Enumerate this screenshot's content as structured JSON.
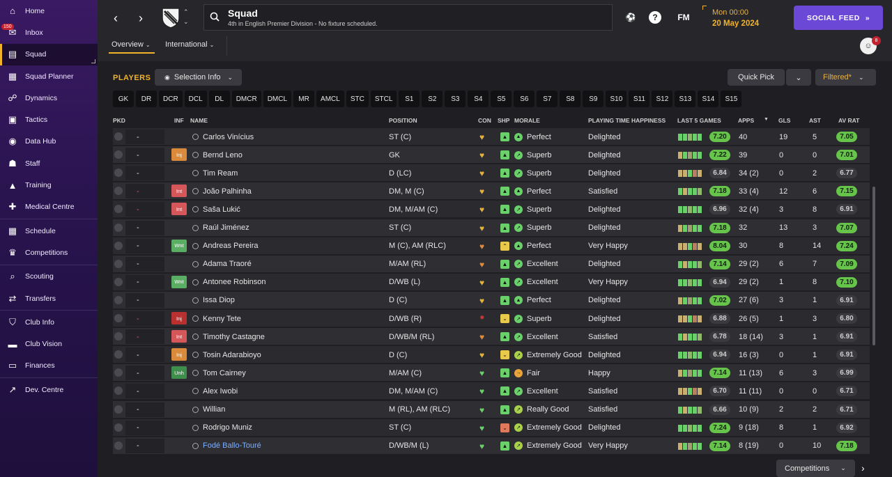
{
  "sidebar": {
    "inbox_badge": "150",
    "items": [
      {
        "label": "Home",
        "icon": "home-icon",
        "glyph": "⌂"
      },
      {
        "label": "Inbox",
        "icon": "inbox-icon",
        "glyph": "✉"
      },
      {
        "label": "Squad",
        "icon": "shirt-icon",
        "glyph": "▤"
      },
      {
        "label": "Squad Planner",
        "icon": "clipboard-icon",
        "glyph": "▦"
      },
      {
        "label": "Dynamics",
        "icon": "people-icon",
        "glyph": "☍"
      },
      {
        "label": "Tactics",
        "icon": "tactics-board-icon",
        "glyph": "▣"
      },
      {
        "label": "Data Hub",
        "icon": "data-hub-icon",
        "glyph": "◉"
      },
      {
        "label": "Staff",
        "icon": "staff-icon",
        "glyph": "☗"
      },
      {
        "label": "Training",
        "icon": "training-cone-icon",
        "glyph": "▲"
      },
      {
        "label": "Medical Centre",
        "icon": "medical-icon",
        "glyph": "✚"
      },
      {
        "label": "Schedule",
        "icon": "calendar-icon",
        "glyph": "▦"
      },
      {
        "label": "Competitions",
        "icon": "trophy-icon",
        "glyph": "♛"
      },
      {
        "label": "Scouting",
        "icon": "magnifier-icon",
        "glyph": "⌕"
      },
      {
        "label": "Transfers",
        "icon": "transfer-arrows-icon",
        "glyph": "⇄"
      },
      {
        "label": "Club Info",
        "icon": "shield-icon",
        "glyph": "⛉"
      },
      {
        "label": "Club Vision",
        "icon": "briefcase-icon",
        "glyph": "▬"
      },
      {
        "label": "Finances",
        "icon": "cash-icon",
        "glyph": "▭"
      },
      {
        "label": "Dev. Centre",
        "icon": "trend-icon",
        "glyph": "↗"
      }
    ]
  },
  "header": {
    "title": "Squad",
    "subtitle": "4th in English Premier Division - No fixture scheduled.",
    "time": "Mon 00:00",
    "date": "20 May 2024",
    "social_feed": "SOCIAL FEED",
    "fm_label": "FM",
    "help_label": "?",
    "notif_count": "8",
    "tabs": [
      "Overview",
      "International"
    ]
  },
  "toolbar": {
    "players_label": "PLAYERS",
    "selection_info": "Selection Info",
    "quick_pick": "Quick Pick",
    "filtered": "Filtered*",
    "positions": [
      "GK",
      "DR",
      "DCR",
      "DCL",
      "DL",
      "DMCR",
      "DMCL",
      "MR",
      "AMCL",
      "STC",
      "STCL",
      "S1",
      "S2",
      "S3",
      "S4",
      "S5",
      "S6",
      "S7",
      "S8",
      "S9",
      "S10",
      "S11",
      "S12",
      "S13",
      "S14",
      "S15"
    ]
  },
  "table": {
    "headers": {
      "pkd": "PKD",
      "inf": "INF",
      "name": "NAME",
      "position": "POSITION",
      "con": "CON",
      "shp": "SHP",
      "morale": "MORALE",
      "pth": "PLAYING TIME HAPPINESS",
      "last5": "LAST 5 GAMES",
      "apps": "APPS",
      "gls": "GLS",
      "ast": "AST",
      "avrat": "AV RAT"
    },
    "rows": [
      {
        "name": "Carlos Vinícius",
        "inf": "",
        "position": "ST (C)",
        "morale": "Perfect",
        "pth": "Delighted",
        "l5": "7.20",
        "l5hi": true,
        "apps": "40",
        "gls": "19",
        "ast": "5",
        "av": "7.05",
        "avhi": true,
        "sel": "-",
        "selRed": false,
        "con": "gold",
        "shp": "good"
      },
      {
        "name": "Bernd Leno",
        "inf": "Inj",
        "position": "GK",
        "morale": "Superb",
        "pth": "Delighted",
        "l5": "7.22",
        "l5hi": true,
        "apps": "39",
        "gls": "0",
        "ast": "0",
        "av": "7.01",
        "avhi": true,
        "sel": "-",
        "selRed": false,
        "con": "gold",
        "shp": "good"
      },
      {
        "name": "Tim Ream",
        "inf": "",
        "position": "D (LC)",
        "morale": "Superb",
        "pth": "Delighted",
        "l5": "6.84",
        "l5hi": false,
        "apps": "34 (2)",
        "gls": "0",
        "ast": "2",
        "av": "6.77",
        "avhi": false,
        "sel": "-",
        "selRed": false,
        "con": "gold",
        "shp": "good"
      },
      {
        "name": "João Palhinha",
        "inf": "Int",
        "position": "DM, M (C)",
        "morale": "Perfect",
        "pth": "Satisfied",
        "l5": "7.18",
        "l5hi": true,
        "apps": "33 (4)",
        "gls": "12",
        "ast": "6",
        "av": "7.15",
        "avhi": true,
        "sel": "-",
        "selRed": true,
        "con": "gold",
        "shp": "good"
      },
      {
        "name": "Saša Lukić",
        "inf": "Int",
        "position": "DM, M/AM (C)",
        "morale": "Superb",
        "pth": "Delighted",
        "l5": "6.96",
        "l5hi": false,
        "apps": "32 (4)",
        "gls": "3",
        "ast": "8",
        "av": "6.91",
        "avhi": false,
        "sel": "-",
        "selRed": true,
        "con": "gold",
        "shp": "good"
      },
      {
        "name": "Raúl Jiménez",
        "inf": "",
        "position": "ST (C)",
        "morale": "Superb",
        "pth": "Delighted",
        "l5": "7.18",
        "l5hi": true,
        "apps": "32",
        "gls": "13",
        "ast": "3",
        "av": "7.07",
        "avhi": true,
        "sel": "-",
        "selRed": false,
        "con": "gold",
        "shp": "good"
      },
      {
        "name": "Andreas Pereira",
        "inf": "Wnt",
        "position": "M (C), AM (RLC)",
        "morale": "Perfect",
        "pth": "Very Happy",
        "l5": "8.04",
        "l5hi": true,
        "apps": "30",
        "gls": "8",
        "ast": "14",
        "av": "7.24",
        "avhi": true,
        "sel": "-",
        "selRed": false,
        "con": "orange",
        "shp": "peak"
      },
      {
        "name": "Adama Traoré",
        "inf": "",
        "position": "M/AM (RL)",
        "morale": "Excellent",
        "pth": "Delighted",
        "l5": "7.14",
        "l5hi": true,
        "apps": "29 (2)",
        "gls": "6",
        "ast": "7",
        "av": "7.09",
        "avhi": true,
        "sel": "-",
        "selRed": false,
        "con": "orange",
        "shp": "good"
      },
      {
        "name": "Antonee Robinson",
        "inf": "Wnt",
        "position": "D/WB (L)",
        "morale": "Excellent",
        "pth": "Very Happy",
        "l5": "6.94",
        "l5hi": false,
        "apps": "29 (2)",
        "gls": "1",
        "ast": "8",
        "av": "7.10",
        "avhi": true,
        "sel": "-",
        "selRed": false,
        "con": "gold",
        "shp": "good"
      },
      {
        "name": "Issa Diop",
        "inf": "",
        "position": "D (C)",
        "morale": "Perfect",
        "pth": "Delighted",
        "l5": "7.02",
        "l5hi": true,
        "apps": "27 (6)",
        "gls": "3",
        "ast": "1",
        "av": "6.91",
        "avhi": false,
        "sel": "-",
        "selRed": false,
        "con": "gold",
        "shp": "good"
      },
      {
        "name": "Kenny Tete",
        "inf": "Inj",
        "infRed": true,
        "position": "D/WB (R)",
        "morale": "Superb",
        "pth": "Delighted",
        "l5": "6.88",
        "l5hi": false,
        "apps": "26 (5)",
        "gls": "1",
        "ast": "3",
        "av": "6.80",
        "avhi": false,
        "sel": "-",
        "selRed": true,
        "con": "injury",
        "shp": "low"
      },
      {
        "name": "Timothy Castagne",
        "inf": "Int",
        "position": "D/WB/M (RL)",
        "morale": "Excellent",
        "pth": "Satisfied",
        "l5": "6.78",
        "l5hi": false,
        "apps": "18 (14)",
        "gls": "3",
        "ast": "1",
        "av": "6.91",
        "avhi": false,
        "sel": "-",
        "selRed": true,
        "con": "orange",
        "shp": "good"
      },
      {
        "name": "Tosin Adarabioyo",
        "inf": "Inj",
        "position": "D (C)",
        "morale": "Extremely Good",
        "pth": "Delighted",
        "l5": "6.94",
        "l5hi": false,
        "apps": "16 (3)",
        "gls": "0",
        "ast": "1",
        "av": "6.91",
        "avhi": false,
        "sel": "-",
        "selRed": false,
        "con": "gold",
        "shp": "low"
      },
      {
        "name": "Tom Cairney",
        "inf": "Unh",
        "position": "M/AM (C)",
        "morale": "Fair",
        "pth": "Happy",
        "l5": "7.14",
        "l5hi": true,
        "apps": "11 (13)",
        "gls": "6",
        "ast": "3",
        "av": "6.99",
        "avhi": false,
        "sel": "-",
        "selRed": false,
        "con": "green",
        "shp": "good"
      },
      {
        "name": "Alex Iwobi",
        "inf": "",
        "position": "DM, M/AM (C)",
        "morale": "Excellent",
        "pth": "Satisfied",
        "l5": "6.70",
        "l5hi": false,
        "apps": "11 (11)",
        "gls": "0",
        "ast": "0",
        "av": "6.71",
        "avhi": false,
        "sel": "-",
        "selRed": false,
        "con": "green",
        "shp": "good"
      },
      {
        "name": "Willian",
        "inf": "",
        "position": "M (RL), AM (RLC)",
        "morale": "Really Good",
        "pth": "Satisfied",
        "l5": "6.66",
        "l5hi": false,
        "apps": "10 (9)",
        "gls": "2",
        "ast": "2",
        "av": "6.71",
        "avhi": false,
        "sel": "-",
        "selRed": false,
        "con": "green",
        "shp": "good"
      },
      {
        "name": "Rodrigo Muniz",
        "inf": "",
        "position": "ST (C)",
        "morale": "Extremely Good",
        "pth": "Delighted",
        "l5": "7.24",
        "l5hi": true,
        "apps": "9 (18)",
        "gls": "8",
        "ast": "1",
        "av": "6.92",
        "avhi": false,
        "sel": "-",
        "selRed": false,
        "con": "green",
        "shp": "bad"
      },
      {
        "name": "Fodé Ballo-Touré",
        "inf": "",
        "link": true,
        "position": "D/WB/M (L)",
        "morale": "Extremely Good",
        "pth": "Very Happy",
        "l5": "7.14",
        "l5hi": true,
        "apps": "8 (19)",
        "gls": "0",
        "ast": "10",
        "av": "7.18",
        "avhi": true,
        "sel": "-",
        "selRed": false,
        "con": "green",
        "shp": "good"
      }
    ]
  },
  "footer": {
    "competitions": "Competitions"
  },
  "colors": {
    "accent": "#f2b32b",
    "social": "#6b48d6",
    "rating_high": "#66c44a",
    "sidebar": "#2a1450"
  }
}
